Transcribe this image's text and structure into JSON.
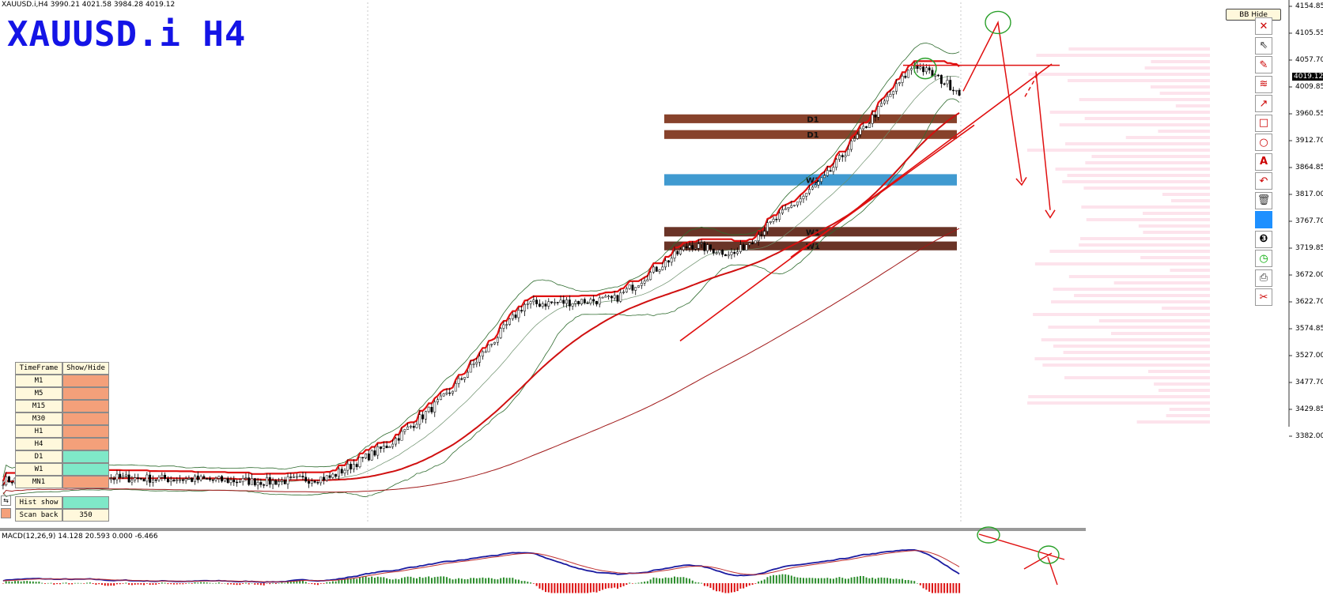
{
  "header": {
    "info": "XAUUSD.i,H4  3990.21 4021.58 3984.28 4019.12",
    "symbol_title": "XAUUSD.i H4"
  },
  "macd_label": "MACD(12,26,9) 14.128 20.593 0.000 -6.466",
  "bb_button": "BB Hide",
  "current_price": "4019.12",
  "price_axis": [
    "4154.85",
    "4105.55",
    "4057.70",
    "4009.85",
    "3960.55",
    "3912.70",
    "3864.85",
    "3817.00",
    "3767.70",
    "3719.85",
    "3672.00",
    "3622.70",
    "3574.85",
    "3527.00",
    "3477.70",
    "3429.85",
    "3382.00"
  ],
  "timeframe_panel": {
    "header_left": "TimeFrame",
    "header_right": "Show/Hide",
    "rows": [
      {
        "label": "M1",
        "color": "#f4a07a"
      },
      {
        "label": "M5",
        "color": "#f4a07a"
      },
      {
        "label": "M15",
        "color": "#f4a07a"
      },
      {
        "label": "M30",
        "color": "#f4a07a"
      },
      {
        "label": "H1",
        "color": "#f4a07a"
      },
      {
        "label": "H4",
        "color": "#f4a07a"
      },
      {
        "label": "D1",
        "color": "#7fe8c8"
      },
      {
        "label": "W1",
        "color": "#7fe8c8"
      },
      {
        "label": "MN1",
        "color": "#f4a07a"
      }
    ],
    "hist_label": "Hist show",
    "hist_color": "#7fe8c8",
    "scan_label": "Scan back",
    "scan_value": "350"
  },
  "zones": [
    {
      "label": "D1",
      "top": 3982,
      "bottom": 3968,
      "color": "#7a2e14"
    },
    {
      "label": "D1",
      "top": 3957,
      "bottom": 3943,
      "color": "#7a2e14"
    },
    {
      "label": "W1",
      "top": 3887,
      "bottom": 3869,
      "color": "#1e88c8"
    },
    {
      "label": "W1",
      "top": 3803,
      "bottom": 3788,
      "color": "#5a1e0f"
    },
    {
      "label": "W1",
      "top": 3780,
      "bottom": 3766,
      "color": "#5a1e0f"
    }
  ],
  "chart_data": {
    "type": "candlestick",
    "title": "XAUUSD.i H4",
    "ylim": [
      3335,
      4160
    ],
    "colors": {
      "ma_fast": "#d01010",
      "ma_slow": "#a01818",
      "bands": "#2e6b2e",
      "zone_label": "#111111",
      "macd_line": "#1a1aa0",
      "macd_signal": "#c03030",
      "hist_pos": "#2a8c2a",
      "hist_neg": "#dd1111"
    },
    "segments": [
      {
        "n": 30,
        "to": 3405
      },
      {
        "n": 35,
        "to": 3402
      },
      {
        "n": 25,
        "to": 3398
      },
      {
        "n": 20,
        "to": 3405
      },
      {
        "n": 20,
        "to": 3458
      },
      {
        "n": 20,
        "to": 3540
      },
      {
        "n": 25,
        "to": 3680
      },
      {
        "n": 30,
        "to": 3688
      },
      {
        "n": 25,
        "to": 3775
      },
      {
        "n": 15,
        "to": 3760
      },
      {
        "n": 30,
        "to": 3880
      },
      {
        "n": 30,
        "to": 4062
      },
      {
        "n": 15,
        "to": 4019
      }
    ]
  }
}
